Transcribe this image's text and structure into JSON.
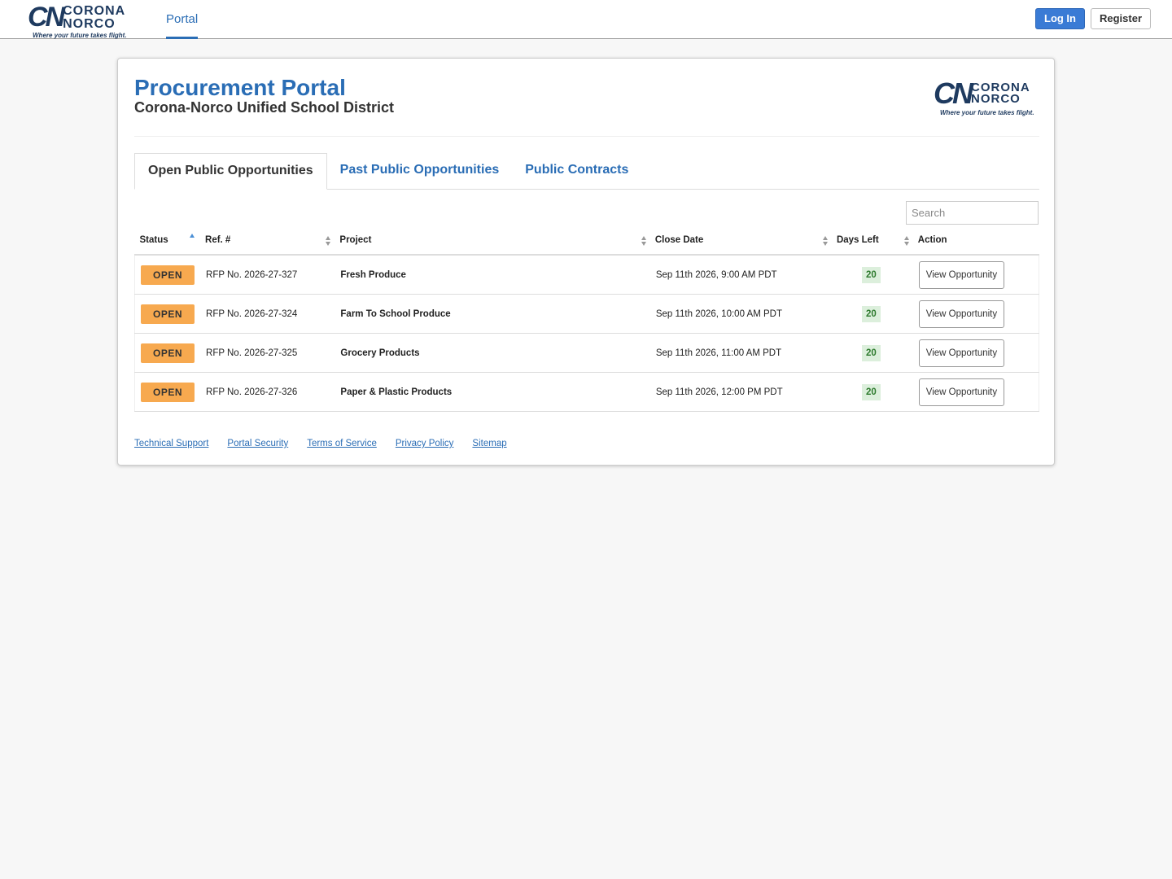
{
  "nav": {
    "logo": {
      "mark": "CN",
      "line1": "CORONA",
      "line2": "NORCO",
      "tagline": "Where your future takes flight."
    },
    "link": "Portal",
    "login": "Log In",
    "register": "Register"
  },
  "header": {
    "title": "Procurement Portal",
    "subtitle": "Corona-Norco Unified School District"
  },
  "tabs": [
    "Open Public Opportunities",
    "Past Public Opportunities",
    "Public Contracts"
  ],
  "search_placeholder": "Search",
  "table": {
    "columns": [
      "Status",
      "Ref. #",
      "Project",
      "Close Date",
      "Days Left",
      "Action"
    ],
    "rows": [
      [
        "OPEN",
        "RFP No. 2026-27-327",
        "Fresh Produce",
        "Sep 11th 2026, 9:00 AM PDT",
        20,
        "View Opportunity"
      ],
      [
        "OPEN",
        "RFP No. 2026-27-324",
        "Farm To School Produce",
        "Sep 11th 2026, 10:00 AM PDT",
        20,
        "View Opportunity"
      ],
      [
        "OPEN",
        "RFP No. 2026-27-325",
        "Grocery Products",
        "Sep 11th 2026, 11:00 AM PDT",
        20,
        "View Opportunity"
      ],
      [
        "OPEN",
        "RFP No. 2026-27-326",
        "Paper & Plastic Products",
        "Sep 11th 2026, 12:00 PM PDT",
        20,
        "View Opportunity"
      ]
    ]
  },
  "footer_links": [
    "Technical Support",
    "Portal Security",
    "Terms of Service",
    "Privacy Policy",
    "Sitemap"
  ]
}
